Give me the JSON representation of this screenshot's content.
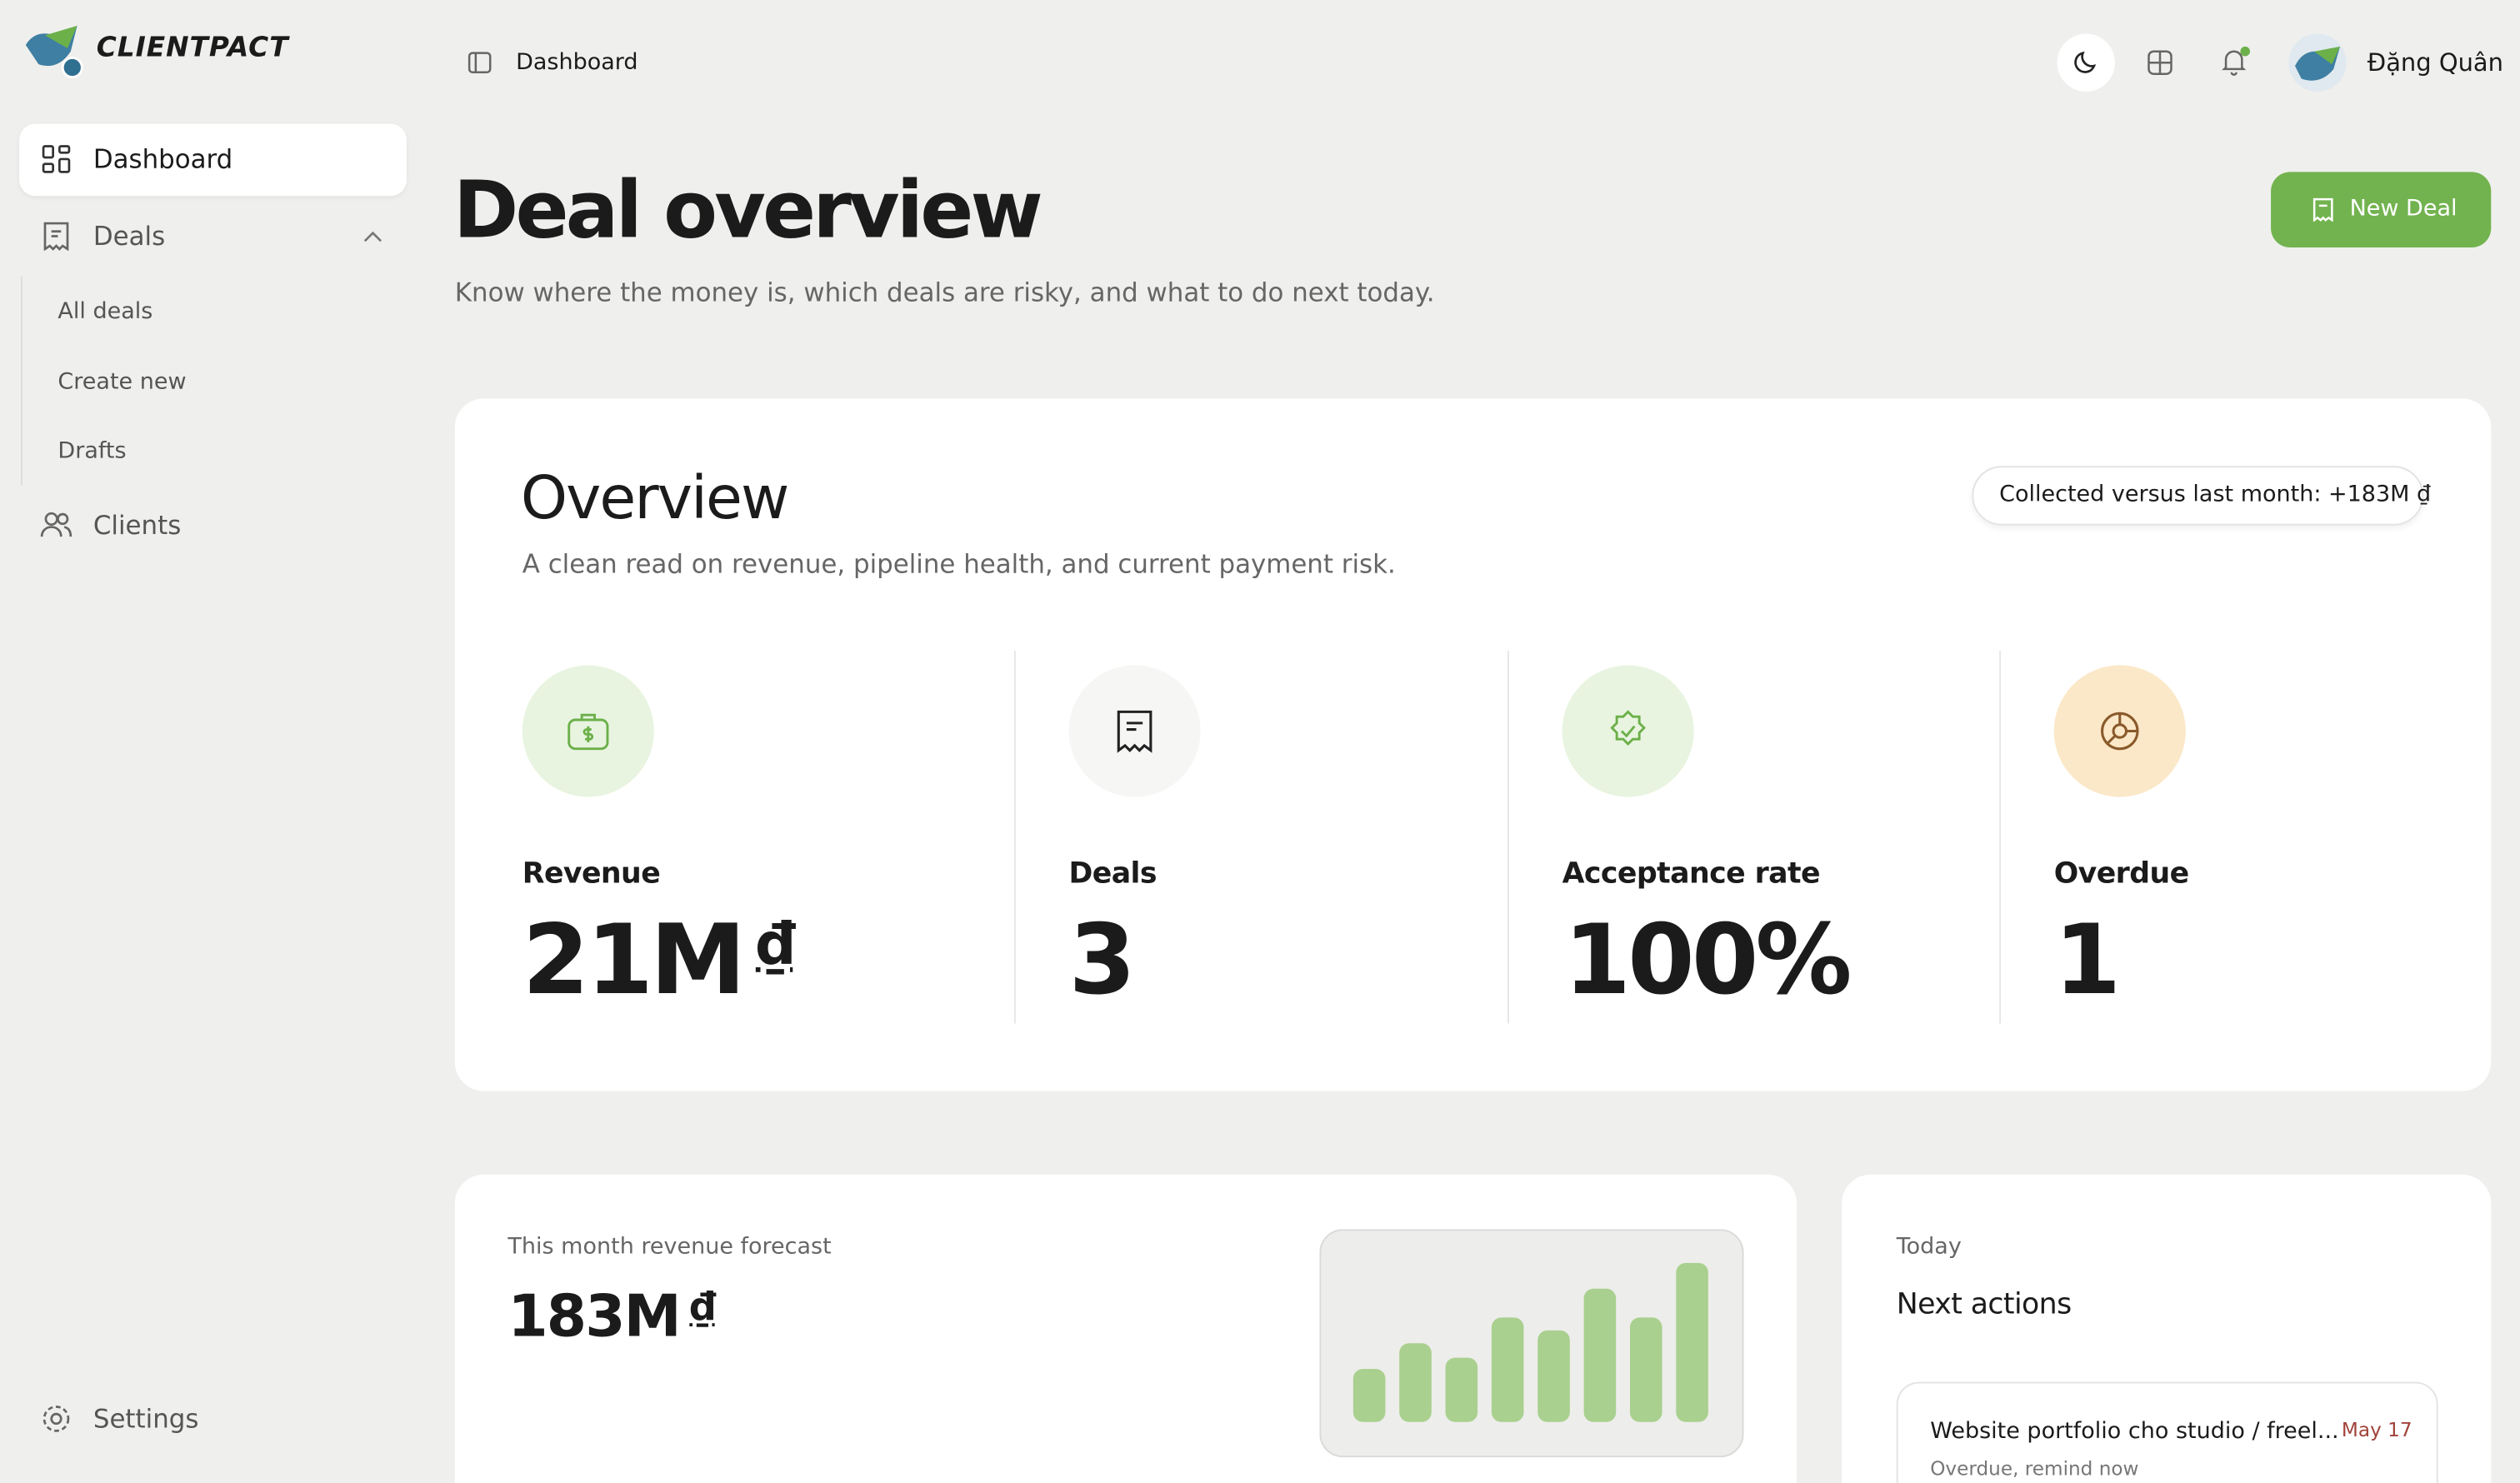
{
  "brand": "CLIENTPACT",
  "sidebar": {
    "nav": [
      {
        "label": "Dashboard"
      },
      {
        "label": "Deals",
        "children": [
          "All deals",
          "Create new",
          "Drafts"
        ]
      },
      {
        "label": "Clients"
      }
    ],
    "footer": "Settings"
  },
  "topbar": {
    "breadcrumb": "Dashboard",
    "user": "Đặng Quân"
  },
  "page": {
    "title": "Deal overview",
    "subtitle": "Know where the money is, which deals are risky, and what to do next today.",
    "action": "New Deal"
  },
  "overview": {
    "title": "Overview",
    "subtitle": "A clean read on revenue, pipeline health, and current payment risk.",
    "badge": "Collected versus last month: +183M ₫",
    "stats": [
      {
        "label": "Revenue",
        "value": "21M",
        "unit": "₫"
      },
      {
        "label": "Deals",
        "value": "3"
      },
      {
        "label": "Acceptance rate",
        "value": "100%"
      },
      {
        "label": "Overdue",
        "value": "1"
      }
    ]
  },
  "forecast": {
    "label": "This month revenue forecast",
    "value": "183M",
    "unit": "₫",
    "chart": {
      "type": "bar",
      "values": [
        33,
        49,
        40,
        65,
        57,
        83,
        65,
        99
      ],
      "ylim": [
        0,
        100
      ],
      "color": "#a9d08e"
    }
  },
  "next_actions": {
    "eyebrow": "Today",
    "title": "Next actions",
    "items": [
      {
        "title": "Website portfolio cho studio / freel...",
        "date": "May 17",
        "note": "Overdue, remind now"
      }
    ]
  }
}
